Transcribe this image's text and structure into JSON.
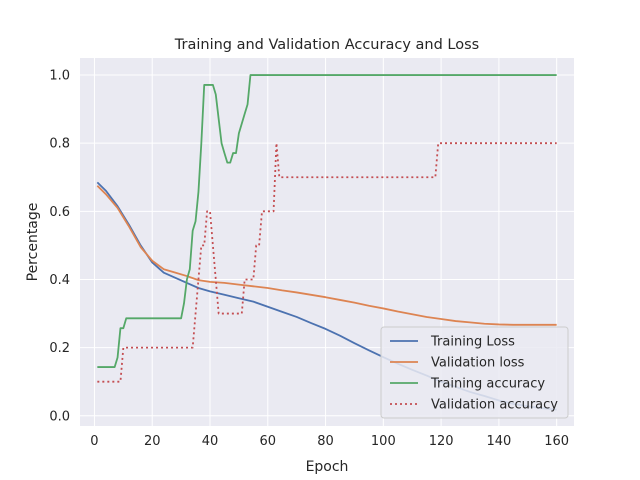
{
  "chart_data": {
    "type": "line",
    "title": "Training and Validation Accuracy and Loss",
    "xlabel": "Epoch",
    "ylabel": "Percentage",
    "xlim": [
      -5,
      166
    ],
    "ylim": [
      -0.03,
      1.05
    ],
    "xticks": [
      0,
      20,
      40,
      60,
      80,
      100,
      120,
      140,
      160
    ],
    "xtick_labels": [
      "0",
      "20",
      "40",
      "60",
      "80",
      "100",
      "120",
      "140",
      "160"
    ],
    "yticks": [
      0.0,
      0.2,
      0.4,
      0.6,
      0.8,
      1.0
    ],
    "ytick_labels": [
      "0.0",
      "0.2",
      "0.4",
      "0.6",
      "0.8",
      "1.0"
    ],
    "grid": true,
    "legend_position": "lower-right",
    "background_color": "#eaeaf2",
    "series": [
      {
        "name": "Training Loss",
        "color": "#4c72b0",
        "style": "solid",
        "x": [
          1,
          4,
          8,
          12,
          16,
          20,
          24,
          28,
          32,
          36,
          40,
          45,
          50,
          55,
          60,
          65,
          70,
          75,
          80,
          85,
          90,
          95,
          100,
          105,
          110,
          115,
          120,
          125,
          130,
          135,
          140,
          145,
          150,
          155,
          160
        ],
        "y": [
          0.685,
          0.66,
          0.615,
          0.56,
          0.5,
          0.45,
          0.42,
          0.405,
          0.39,
          0.375,
          0.365,
          0.355,
          0.345,
          0.335,
          0.32,
          0.305,
          0.29,
          0.272,
          0.255,
          0.235,
          0.213,
          0.192,
          0.172,
          0.153,
          0.135,
          0.118,
          0.1,
          0.085,
          0.07,
          0.058,
          0.045,
          0.035,
          0.028,
          0.022,
          0.018
        ]
      },
      {
        "name": "Validation loss",
        "color": "#dd8452",
        "style": "solid",
        "x": [
          1,
          4,
          8,
          12,
          16,
          20,
          24,
          28,
          32,
          36,
          40,
          45,
          50,
          55,
          60,
          65,
          70,
          75,
          80,
          85,
          90,
          95,
          100,
          105,
          110,
          115,
          120,
          125,
          130,
          135,
          140,
          145,
          150,
          155,
          160
        ],
        "y": [
          0.675,
          0.65,
          0.61,
          0.555,
          0.495,
          0.455,
          0.43,
          0.42,
          0.41,
          0.398,
          0.393,
          0.39,
          0.385,
          0.38,
          0.375,
          0.368,
          0.362,
          0.355,
          0.348,
          0.34,
          0.332,
          0.323,
          0.315,
          0.306,
          0.298,
          0.29,
          0.284,
          0.278,
          0.274,
          0.27,
          0.268,
          0.267,
          0.267,
          0.267,
          0.267
        ]
      },
      {
        "name": "Training accuracy",
        "color": "#55a868",
        "style": "solid",
        "x": [
          1,
          7,
          8,
          9,
          10,
          11,
          12,
          30,
          31,
          32,
          33,
          34,
          35,
          36,
          37,
          38,
          41,
          42,
          43,
          44,
          45,
          46,
          47,
          48,
          49,
          50,
          52,
          53,
          54,
          160
        ],
        "y": [
          0.143,
          0.143,
          0.171,
          0.257,
          0.257,
          0.286,
          0.286,
          0.286,
          0.33,
          0.4,
          0.43,
          0.543,
          0.571,
          0.657,
          0.8,
          0.971,
          0.971,
          0.943,
          0.871,
          0.8,
          0.771,
          0.743,
          0.743,
          0.771,
          0.771,
          0.829,
          0.886,
          0.914,
          1.0,
          1.0
        ]
      },
      {
        "name": "Validation accuracy",
        "color": "#c44e52",
        "style": "dotted",
        "x": [
          1,
          9,
          10,
          33,
          34,
          35,
          36,
          37,
          38,
          39,
          40,
          41,
          42,
          43,
          51,
          52,
          54,
          55,
          56,
          57,
          58,
          61,
          62,
          63,
          64,
          118,
          119,
          160
        ],
        "y": [
          0.1,
          0.1,
          0.2,
          0.2,
          0.2,
          0.3,
          0.4,
          0.5,
          0.5,
          0.6,
          0.6,
          0.5,
          0.4,
          0.3,
          0.3,
          0.4,
          0.4,
          0.4,
          0.5,
          0.5,
          0.6,
          0.6,
          0.6,
          0.8,
          0.7,
          0.7,
          0.8,
          0.8
        ]
      }
    ]
  }
}
